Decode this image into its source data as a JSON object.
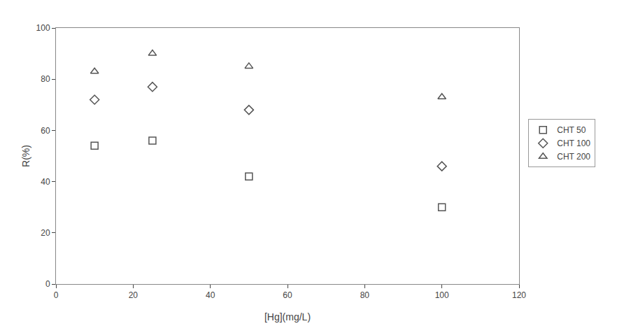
{
  "chart_data": {
    "type": "scatter",
    "xlabel": "[Hg](mg/L)",
    "ylabel": "R(%)",
    "x": [
      10,
      25,
      50,
      100
    ],
    "xlim": [
      0,
      120
    ],
    "ylim": [
      0,
      100
    ],
    "xticks": [
      0,
      20,
      40,
      60,
      80,
      100,
      120
    ],
    "yticks": [
      0,
      20,
      40,
      60,
      80,
      100
    ],
    "grid": false,
    "legend": "right",
    "series": [
      {
        "name": "CHT 50",
        "values": [
          54,
          56,
          42,
          30
        ],
        "marker": "square",
        "color": "#555555"
      },
      {
        "name": "CHT 100",
        "values": [
          72,
          77,
          68,
          46
        ],
        "marker": "diamond",
        "color": "#555555"
      },
      {
        "name": "CHT 200",
        "values": [
          83,
          90,
          85,
          73
        ],
        "marker": "triangle-up",
        "color": "#555555"
      }
    ]
  }
}
